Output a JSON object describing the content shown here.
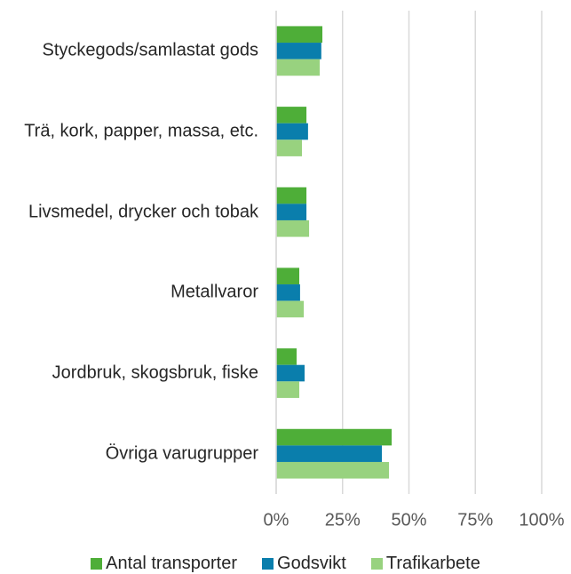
{
  "chart_data": {
    "type": "bar",
    "orientation": "horizontal",
    "categories": [
      "Styckegods/samlastat gods",
      "Trä, kork, papper, massa, etc.",
      "Livsmedel, drycker och tobak",
      "Metallvaror",
      "Jordbruk, skogsbruk, fiske",
      "Övriga varugrupper"
    ],
    "series": [
      {
        "name": "Antal transporter",
        "color": "#4eae38",
        "values": [
          17.4,
          11.4,
          11.4,
          8.7,
          7.7,
          43.5
        ]
      },
      {
        "name": "Godsvikt",
        "color": "#0a7eac",
        "values": [
          17,
          12,
          11.4,
          9,
          10.7,
          39.8
        ]
      },
      {
        "name": "Trafikarbete",
        "color": "#98d27f",
        "values": [
          16.4,
          9.7,
          12.4,
          10.4,
          8.7,
          42.5
        ]
      }
    ],
    "xlim": [
      0,
      100
    ],
    "xticks": [
      {
        "value": 0,
        "label": "0%"
      },
      {
        "value": 25,
        "label": "25%"
      },
      {
        "value": 50,
        "label": "50%"
      },
      {
        "value": 75,
        "label": "75%"
      },
      {
        "value": 100,
        "label": "100%"
      }
    ],
    "grid": true,
    "legend": "bottom"
  }
}
